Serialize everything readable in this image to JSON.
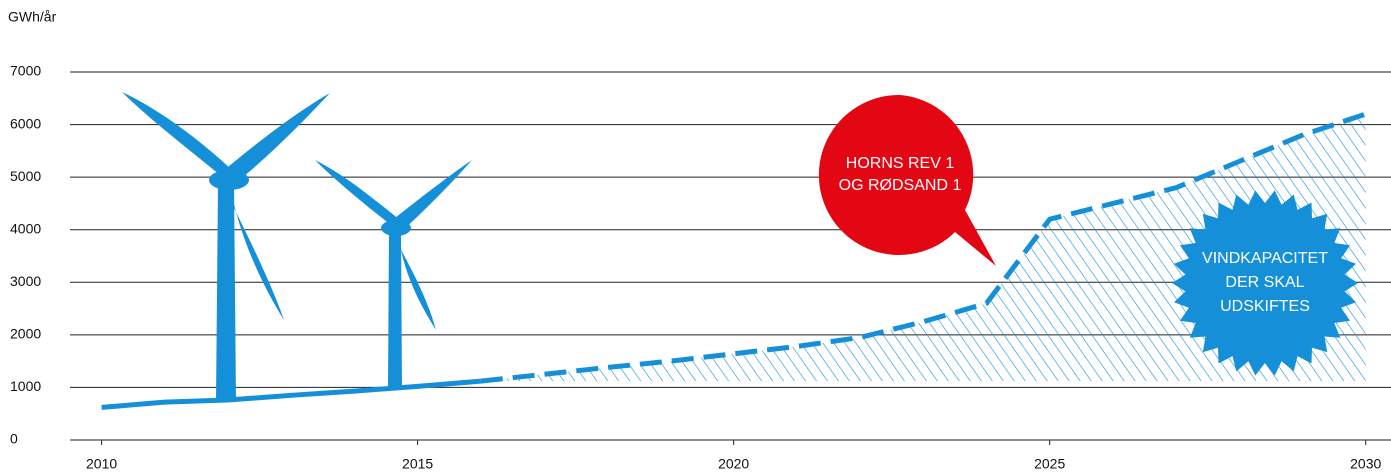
{
  "chart_data": {
    "type": "line",
    "y_label": "GWh/år",
    "x": [
      2010,
      2011,
      2012,
      2013,
      2014,
      2015,
      2016,
      2017,
      2018,
      2019,
      2020,
      2021,
      2022,
      2023,
      2024,
      2025,
      2026,
      2027,
      2028,
      2029,
      2030
    ],
    "series": [
      {
        "color": "#1590d8",
        "dashed": false,
        "values": [
          620,
          720,
          760,
          850,
          930,
          1020,
          1120,
          null,
          null,
          null,
          null,
          null,
          null,
          null,
          null,
          null,
          null,
          null,
          null,
          null,
          null
        ]
      },
      {
        "color": "#1590d8",
        "dashed": true,
        "hatched": true,
        "values": [
          null,
          null,
          null,
          null,
          null,
          null,
          1120,
          1250,
          1380,
          1500,
          1640,
          1780,
          1950,
          2250,
          2600,
          4200,
          4500,
          4800,
          5300,
          5800,
          6200
        ]
      }
    ],
    "xlim": [
      2009.5,
      2030.4
    ],
    "xticks": [
      2010,
      2015,
      2020,
      2025,
      2030
    ],
    "ylim": [
      0,
      7000
    ],
    "yticks": [
      0,
      1000,
      2000,
      3000,
      4000,
      5000,
      6000,
      7000
    ],
    "grid": true,
    "annotations": [
      {
        "color": "#e30613",
        "lines": [
          "HORNS REV 1",
          "OG RØDSAND 1"
        ]
      },
      {
        "color": "#1590d8",
        "lines": [
          "VINDKAPACITET",
          "DER SKAL",
          "UDSKIFTES"
        ]
      }
    ]
  }
}
